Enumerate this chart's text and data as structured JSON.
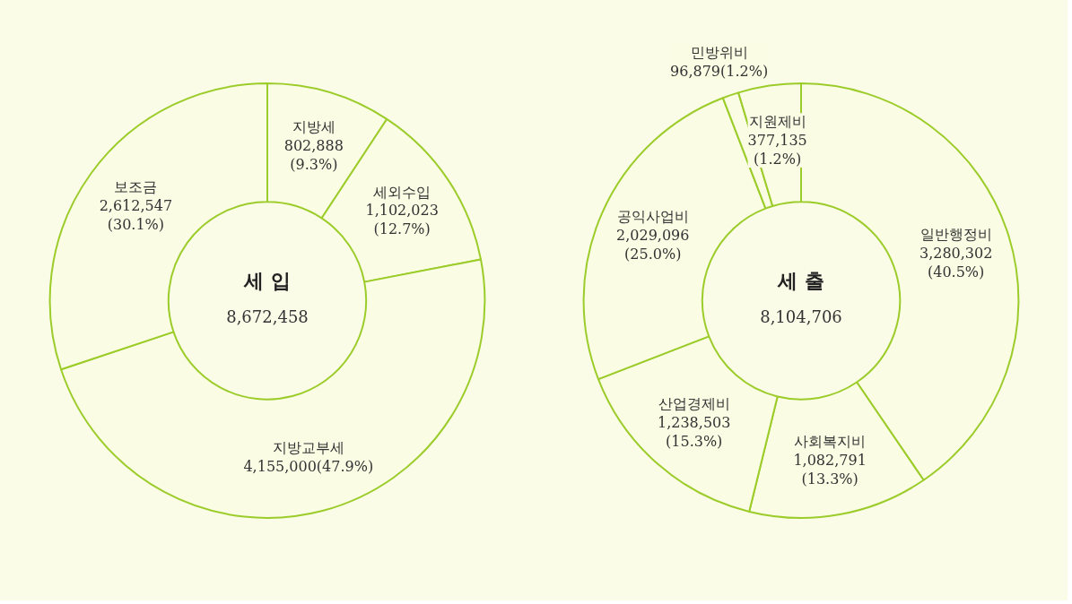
{
  "chart_data": [
    {
      "type": "donut",
      "title": "세 입",
      "subtitle": "8,672,458",
      "categories": [
        "지방세",
        "세외수입",
        "지방교부세",
        "보조금"
      ],
      "values": [
        802888,
        1102023,
        4155000,
        2612547
      ],
      "colors": [
        "#fafce4",
        "#fafce4",
        "#fafce4",
        "#fafce4"
      ],
      "value_labels": [
        "802,888\n(9.3%)",
        "1,102,023\n(12.7%)",
        "4,155,000(47.9%)",
        "2,612,547\n(30.1%)"
      ]
    },
    {
      "type": "donut",
      "title": "세 출",
      "subtitle": "8,104,706",
      "categories": [
        "일반행정비",
        "사회복지비",
        "산업경제비",
        "공익사업비",
        "민방위비",
        "지원제비"
      ],
      "values": [
        3280302,
        1082791,
        1238503,
        2029096,
        96879,
        377135
      ],
      "colors": [
        "#fafce4",
        "#fafce4",
        "#fafce4",
        "#fafce4",
        "#fafce4",
        "#fafce4"
      ],
      "value_labels": [
        "3,280,302\n(40.5%)",
        "1,082,791\n(13.3%)",
        "1,238,503\n(15.3%)",
        "2,029,096\n(25.0%)",
        "96,879(1.2%)",
        "377,135\n(1.2%)"
      ]
    }
  ]
}
